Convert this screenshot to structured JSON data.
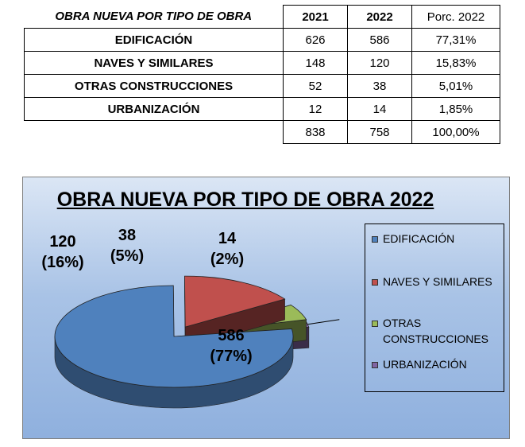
{
  "table": {
    "header": {
      "label": "OBRA NUEVA POR TIPO DE OBRA",
      "y2021": "2021",
      "y2022": "2022",
      "pct": "Porc. 2022"
    },
    "rows": [
      {
        "label": "EDIFICACIÓN",
        "y2021": "626",
        "y2022": "586",
        "pct": "77,31%"
      },
      {
        "label": "NAVES Y SIMILARES",
        "y2021": "148",
        "y2022": "120",
        "pct": "15,83%"
      },
      {
        "label": "OTRAS CONSTRUCCIONES",
        "y2021": "52",
        "y2022": "38",
        "pct": "5,01%"
      },
      {
        "label": "URBANIZACIÓN",
        "y2021": "12",
        "y2022": "14",
        "pct": "1,85%"
      }
    ],
    "total": {
      "label": "",
      "y2021": "838",
      "y2022": "758",
      "pct": "100,00%"
    }
  },
  "chart_data": {
    "type": "pie",
    "title": "OBRA NUEVA POR TIPO DE OBRA 2022",
    "categories": [
      "EDIFICACIÓN",
      "NAVES Y SIMILARES",
      "OTRAS CONSTRUCCIONES",
      "URBANIZACIÓN"
    ],
    "values": [
      586,
      120,
      38,
      14
    ],
    "labels": [
      {
        "value": "586",
        "pct": "(77%)"
      },
      {
        "value": "120",
        "pct": "(16%)"
      },
      {
        "value": "38",
        "pct": "(5%)"
      },
      {
        "value": "14",
        "pct": "(2%)"
      }
    ],
    "colors": [
      "#4f81bd",
      "#c0504d",
      "#9bbb59",
      "#8064a2"
    ],
    "exploded": true,
    "three_d": true,
    "legend": "right"
  }
}
